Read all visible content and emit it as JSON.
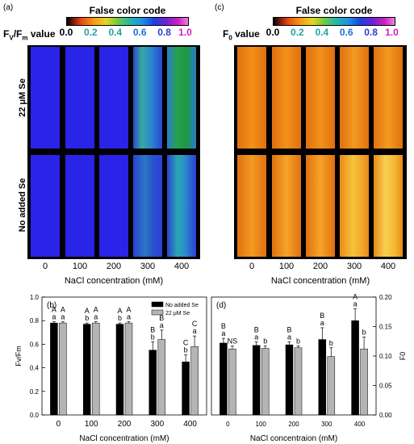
{
  "panels": {
    "a": {
      "label": "(a)",
      "colorbar_title": "False color code",
      "value_label_main": "F",
      "value_label_sub": "V",
      "value_label_mid": "/F",
      "value_label_sub2": "m",
      "value_label_end": " value"
    },
    "c": {
      "label": "(c)",
      "colorbar_title": "False color code",
      "value_label_main": "F",
      "value_label_sub": "0",
      "value_label_end": " value"
    },
    "b": {
      "label": "(b)"
    },
    "d": {
      "label": "(d)"
    }
  },
  "colorbar_ticks": [
    "0.0",
    "0.2",
    "0.4",
    "0.6",
    "0.8",
    "1.0"
  ],
  "row_labels": {
    "top": "22 μM Se",
    "bottom": "No added Se"
  },
  "nacl_levels": [
    "0",
    "100",
    "200",
    "300",
    "400"
  ],
  "image_axis_title": "NaCl concentration (mM)",
  "colors": {
    "fvfm_low": "#2a23e8",
    "fvfm_mid": "#2a6fd0",
    "fvfm_high": "#22a05a",
    "f0_orange": "#f28a14",
    "f0_yellow": "#f6c43a",
    "bar_no_se": "#000000",
    "bar_se": "#b4b4b4"
  },
  "chart_data": [
    {
      "type": "bar",
      "panel": "b",
      "categories": [
        "0",
        "100",
        "200",
        "300",
        "400"
      ],
      "xlabel": "NaCl concentration (mM)",
      "ylabel": "Fv/Fm",
      "ylim": [
        0.0,
        1.0
      ],
      "yticks": [
        "0.0",
        "0.2",
        "0.4",
        "0.6",
        "0.8",
        "1.0"
      ],
      "legend": [
        "No added Se",
        "22 μM Se"
      ],
      "legend_position": "top-right",
      "series": [
        {
          "name": "No added Se",
          "values": [
            0.78,
            0.77,
            0.77,
            0.55,
            0.45
          ],
          "errors": [
            0.01,
            0.01,
            0.01,
            0.07,
            0.06
          ]
        },
        {
          "name": "22 μM Se",
          "values": [
            0.78,
            0.78,
            0.78,
            0.64,
            0.58
          ],
          "errors": [
            0.01,
            0.01,
            0.01,
            0.08,
            0.09
          ]
        }
      ],
      "letters": [
        {
          "no_se": [
            "A",
            "a"
          ],
          "se": [
            "A",
            "a"
          ]
        },
        {
          "no_se": [
            "A",
            "b"
          ],
          "se": [
            "A",
            "a"
          ]
        },
        {
          "no_se": [
            "A",
            "b"
          ],
          "se": [
            "A",
            "a"
          ]
        },
        {
          "no_se": [
            "B",
            "b"
          ],
          "se": [
            "B",
            "a"
          ]
        },
        {
          "no_se": [
            "C",
            "b"
          ],
          "se": [
            "C",
            "a"
          ]
        }
      ]
    },
    {
      "type": "bar",
      "panel": "d",
      "categories": [
        "0",
        "100",
        "200",
        "300",
        "400"
      ],
      "xlabel": "NaCl concentraion (mM)",
      "ylabel": "F0",
      "ylim": [
        0.0,
        0.2
      ],
      "yticks": [
        "0.00",
        "0.05",
        "0.10",
        "0.15",
        "0.20"
      ],
      "series": [
        {
          "name": "No added Se",
          "values": [
            0.122,
            0.118,
            0.119,
            0.128,
            0.16
          ],
          "errors": [
            0.008,
            0.006,
            0.005,
            0.02,
            0.02
          ]
        },
        {
          "name": "22 μM Se",
          "values": [
            0.112,
            0.113,
            0.114,
            0.099,
            0.112
          ],
          "errors": [
            0.005,
            0.004,
            0.003,
            0.015,
            0.02
          ]
        }
      ],
      "letters": [
        {
          "no_se": [
            "B",
            "a"
          ],
          "se": [
            "NS"
          ]
        },
        {
          "no_se": [
            "B",
            "a"
          ],
          "se": [
            "b"
          ]
        },
        {
          "no_se": [
            "B",
            "a"
          ],
          "se": [
            "b"
          ]
        },
        {
          "no_se": [
            "B",
            "a"
          ],
          "se": [
            "b"
          ]
        },
        {
          "no_se": [
            "A",
            "a"
          ],
          "se": [
            "b"
          ]
        }
      ]
    }
  ]
}
